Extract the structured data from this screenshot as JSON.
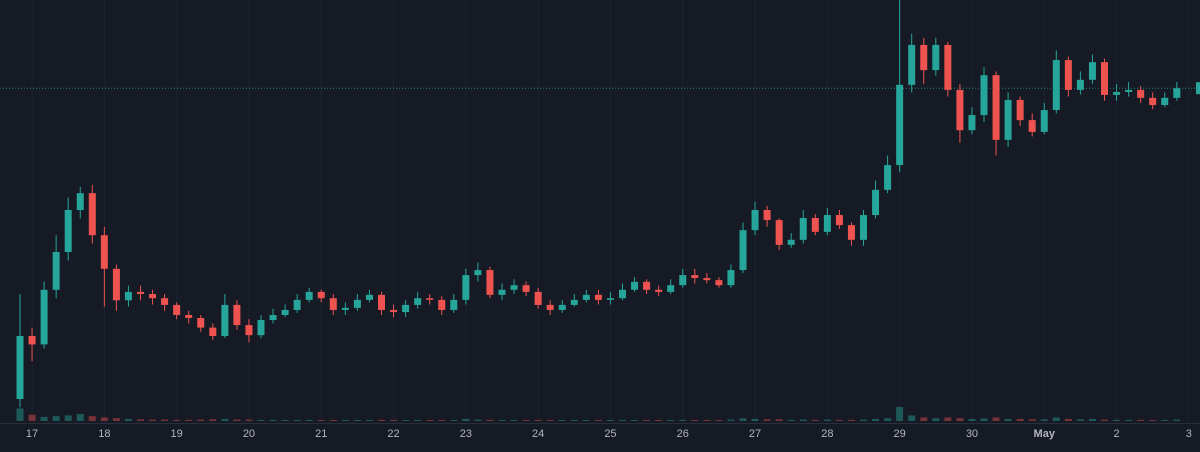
{
  "chart_data": {
    "type": "candlestick",
    "categories": [
      null,
      "17",
      null,
      null,
      null,
      null,
      null,
      "18",
      null,
      null,
      null,
      null,
      null,
      "19",
      null,
      null,
      null,
      null,
      null,
      "20",
      null,
      null,
      null,
      null,
      null,
      "21",
      null,
      null,
      null,
      null,
      null,
      "22",
      null,
      null,
      null,
      null,
      null,
      "23",
      null,
      null,
      null,
      null,
      null,
      "24",
      null,
      null,
      null,
      null,
      null,
      "25",
      null,
      null,
      null,
      null,
      null,
      "26",
      null,
      null,
      null,
      null,
      null,
      "27",
      null,
      null,
      null,
      null,
      null,
      "28",
      null,
      null,
      null,
      null,
      null,
      "29",
      null,
      null,
      null,
      null,
      null,
      "30",
      null,
      null,
      null,
      null,
      null,
      "May",
      null,
      null,
      null,
      null,
      null,
      "2",
      null,
      null,
      null,
      null,
      null,
      "3"
    ],
    "open": [
      5,
      20,
      18,
      31,
      40,
      50,
      54,
      44,
      36,
      28.5,
      30.5,
      30,
      29,
      27.4,
      25,
      24.3,
      22,
      20,
      27.4,
      22.6,
      20.2,
      23.8,
      25,
      26.2,
      28.6,
      30.5,
      29,
      26.2,
      26.7,
      28.6,
      29.8,
      26.2,
      25.7,
      27.4,
      29,
      28.6,
      26.2,
      28.6,
      34.5,
      35.7,
      29.8,
      31,
      32.1,
      30.5,
      27.4,
      26.2,
      27.4,
      28.6,
      29.8,
      28.6,
      29,
      31,
      32.9,
      31,
      30.5,
      32.1,
      34.5,
      33.8,
      33.3,
      32.1,
      35.7,
      45.2,
      50,
      47.6,
      41.7,
      42.9,
      48.1,
      44.8,
      48.8,
      46.4,
      42.9,
      48.8,
      54.8,
      60.7,
      79.8,
      89.3,
      83.3,
      89.3,
      78.6,
      69,
      72.6,
      82.1,
      66.7,
      76.2,
      71.4,
      68.6,
      73.8,
      85.7,
      78.6,
      81,
      85.2,
      77.4,
      78.1,
      78.6,
      76.7,
      75,
      76.7,
      null
    ],
    "high": [
      30,
      22,
      33,
      44,
      53,
      55.5,
      56,
      46,
      37,
      32,
      32,
      31,
      30,
      28,
      26,
      25,
      23,
      30,
      28.5,
      24,
      25,
      26.5,
      27.5,
      30,
      31.5,
      31,
      30,
      28,
      30,
      31,
      30.5,
      27.5,
      28.5,
      30.5,
      30,
      29.5,
      30,
      36,
      37.5,
      36.5,
      32.5,
      33.5,
      33,
      31.5,
      28.5,
      28.5,
      30,
      31,
      31,
      30.5,
      32.5,
      34,
      33.5,
      32,
      33.5,
      36,
      36,
      35,
      34,
      37,
      47,
      52,
      51,
      48,
      44.5,
      50,
      49,
      50.5,
      50,
      47,
      50,
      57,
      63,
      100,
      92,
      91,
      91,
      90,
      80,
      74.5,
      84,
      83,
      78,
      77,
      73,
      75.5,
      88,
      86.5,
      83,
      87,
      86,
      80,
      80.5,
      79.5,
      78,
      78,
      80.5,
      null
    ],
    "low": [
      3,
      14,
      17,
      29,
      38,
      48,
      42,
      27,
      26,
      27,
      28.5,
      27.5,
      26,
      24,
      23,
      21,
      19,
      19.5,
      21.5,
      18.5,
      19.5,
      23,
      24.5,
      25.5,
      28,
      28,
      25,
      25,
      26,
      28,
      25,
      24.5,
      24.5,
      26.5,
      27.5,
      25,
      25.5,
      27.5,
      33,
      29,
      28.5,
      30,
      29.5,
      26.5,
      25,
      25.5,
      27,
      28,
      27.5,
      27.5,
      28.5,
      30.5,
      30,
      29.5,
      30,
      31.5,
      32.5,
      32.5,
      31.5,
      31.5,
      35,
      44,
      46,
      40.5,
      41,
      42,
      44,
      44,
      45.5,
      41.5,
      41.5,
      48,
      54,
      59,
      78,
      80,
      82,
      77,
      66,
      68,
      71,
      63,
      65,
      70,
      67.5,
      68,
      73,
      77,
      77.5,
      80,
      76,
      76,
      77,
      75.5,
      74,
      74.5,
      76,
      null
    ],
    "close": [
      20,
      18,
      31,
      40,
      50,
      54,
      44,
      36,
      28.5,
      30.5,
      30,
      29,
      27.4,
      25,
      24.3,
      22,
      20,
      27.4,
      22.6,
      20.2,
      23.8,
      25,
      26.2,
      28.6,
      30.5,
      29,
      26.2,
      26.7,
      28.6,
      29.8,
      26.2,
      25.7,
      27.4,
      29,
      28.6,
      26.2,
      28.6,
      34.5,
      35.7,
      29.8,
      31,
      32.1,
      30.5,
      27.4,
      26.2,
      27.4,
      28.6,
      29.8,
      28.6,
      29,
      31,
      32.9,
      31,
      30.5,
      32.1,
      34.5,
      33.8,
      33.3,
      32.1,
      35.7,
      45.2,
      50,
      47.6,
      41.7,
      42.9,
      48.1,
      44.8,
      48.8,
      46.4,
      42.9,
      48.8,
      54.8,
      60.7,
      79.8,
      89.3,
      83.3,
      89.3,
      78.6,
      69,
      72.6,
      82.1,
      66.7,
      76.2,
      71.4,
      68.6,
      73.8,
      85.7,
      78.6,
      81,
      85.2,
      77.4,
      78.1,
      78.6,
      76.7,
      75,
      76.7,
      79,
      null
    ],
    "volume": [
      90,
      45,
      30,
      35,
      40,
      50,
      35,
      25,
      20,
      15,
      12,
      10,
      10,
      8,
      8,
      10,
      12,
      15,
      10,
      10,
      8,
      8,
      6,
      6,
      8,
      6,
      6,
      5,
      6,
      6,
      8,
      6,
      6,
      6,
      5,
      6,
      6,
      15,
      10,
      8,
      6,
      6,
      6,
      8,
      6,
      6,
      5,
      5,
      6,
      5,
      8,
      6,
      6,
      6,
      6,
      8,
      6,
      6,
      6,
      10,
      20,
      15,
      12,
      12,
      8,
      10,
      8,
      10,
      8,
      8,
      10,
      15,
      20,
      100,
      40,
      25,
      20,
      25,
      20,
      15,
      18,
      25,
      15,
      15,
      12,
      12,
      25,
      15,
      12,
      15,
      10,
      8,
      8,
      8,
      6,
      8,
      10,
      null
    ],
    "ylim": [
      0,
      100
    ],
    "vlim": [
      0,
      100
    ],
    "last_price": 79,
    "up_color": "#26a69a",
    "down_color": "#ef5350",
    "grid": true
  }
}
